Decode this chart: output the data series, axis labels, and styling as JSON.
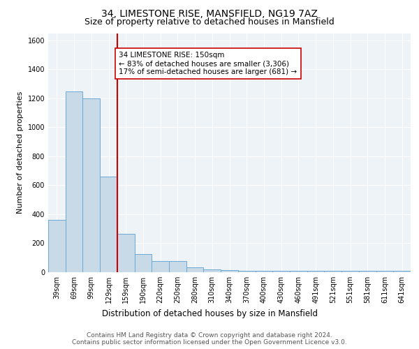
{
  "title": "34, LIMESTONE RISE, MANSFIELD, NG19 7AZ",
  "subtitle": "Size of property relative to detached houses in Mansfield",
  "xlabel": "Distribution of detached houses by size in Mansfield",
  "ylabel": "Number of detached properties",
  "categories": [
    "39sqm",
    "69sqm",
    "99sqm",
    "129sqm",
    "159sqm",
    "190sqm",
    "220sqm",
    "250sqm",
    "280sqm",
    "310sqm",
    "340sqm",
    "370sqm",
    "400sqm",
    "430sqm",
    "460sqm",
    "491sqm",
    "521sqm",
    "551sqm",
    "581sqm",
    "611sqm",
    "641sqm"
  ],
  "values": [
    360,
    1250,
    1200,
    660,
    265,
    125,
    75,
    75,
    35,
    20,
    15,
    10,
    10,
    10,
    10,
    10,
    10,
    10,
    10,
    10,
    10
  ],
  "bar_color": "#c8d9e8",
  "bar_edge_color": "#6aaad4",
  "annotation_text": "34 LIMESTONE RISE: 150sqm\n← 83% of detached houses are smaller (3,306)\n17% of semi-detached houses are larger (681) →",
  "annotation_box_color": "white",
  "annotation_box_edge_color": "#cc0000",
  "red_line_color": "#cc0000",
  "ylim": [
    0,
    1650
  ],
  "yticks": [
    0,
    200,
    400,
    600,
    800,
    1000,
    1200,
    1400,
    1600
  ],
  "bg_color": "#eef3f8",
  "footer_text": "Contains HM Land Registry data © Crown copyright and database right 2024.\nContains public sector information licensed under the Open Government Licence v3.0.",
  "title_fontsize": 10,
  "subtitle_fontsize": 9,
  "xlabel_fontsize": 8.5,
  "ylabel_fontsize": 8,
  "tick_fontsize": 7,
  "annotation_fontsize": 7.5,
  "footer_fontsize": 6.5
}
